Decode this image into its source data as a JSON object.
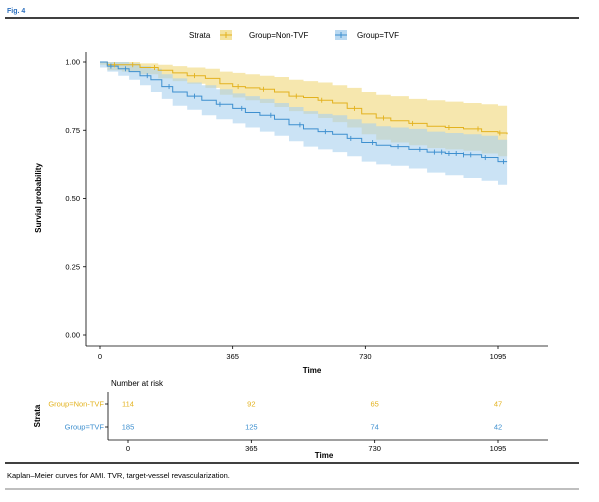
{
  "figure_label": "Fig. 4",
  "caption": "Kaplan–Meier curves for AMI. TVR, target-vessel revascularization.",
  "colors": {
    "non_tvf": "#e3b21e",
    "tvf": "#3d8fcf",
    "non_tvf_band": "#f0d778",
    "tvf_band": "#a9d0ee",
    "figure_label": "#2a6ebd"
  },
  "chart_data": [
    {
      "type": "line",
      "subtype": "kaplan-meier",
      "title": "",
      "xlabel": "Time",
      "ylabel": "Survial probability",
      "xlim": [
        -40,
        1200
      ],
      "ylim": [
        0,
        1.05
      ],
      "x_ticks": [
        0,
        365,
        730,
        1095
      ],
      "y_ticks": [
        "0.00",
        "0.25",
        "0.50",
        "0.75",
        "1.00"
      ],
      "legend": {
        "title": "Strata",
        "position": "top",
        "entries": [
          "Group=Non-TVF",
          "Group=TVF"
        ]
      },
      "grid": false,
      "series": [
        {
          "name": "Group=Non-TVF",
          "color": "#e3b21e",
          "x": [
            0,
            20,
            60,
            110,
            160,
            200,
            240,
            290,
            330,
            365,
            400,
            440,
            480,
            520,
            560,
            600,
            640,
            680,
            720,
            760,
            800,
            850,
            900,
            950,
            1000,
            1050,
            1095,
            1120
          ],
          "y": [
            1.0,
            0.99,
            0.99,
            0.98,
            0.97,
            0.96,
            0.95,
            0.94,
            0.92,
            0.91,
            0.905,
            0.9,
            0.89,
            0.875,
            0.87,
            0.86,
            0.85,
            0.83,
            0.81,
            0.795,
            0.785,
            0.775,
            0.765,
            0.76,
            0.755,
            0.745,
            0.74,
            0.735
          ],
          "ci_upper": [
            1.0,
            1.0,
            1.0,
            0.995,
            0.99,
            0.985,
            0.98,
            0.975,
            0.965,
            0.96,
            0.955,
            0.95,
            0.945,
            0.935,
            0.93,
            0.925,
            0.915,
            0.905,
            0.89,
            0.88,
            0.875,
            0.865,
            0.86,
            0.855,
            0.85,
            0.845,
            0.84,
            0.84
          ],
          "ci_lower": [
            0.99,
            0.97,
            0.965,
            0.955,
            0.94,
            0.93,
            0.92,
            0.905,
            0.88,
            0.87,
            0.86,
            0.85,
            0.835,
            0.82,
            0.81,
            0.795,
            0.78,
            0.76,
            0.735,
            0.715,
            0.705,
            0.695,
            0.685,
            0.68,
            0.675,
            0.665,
            0.655,
            0.65
          ],
          "censor_x": [
            40,
            90,
            150,
            260,
            380,
            450,
            540,
            610,
            700,
            780,
            860,
            960,
            1040,
            1100
          ]
        },
        {
          "name": "Group=TVF",
          "color": "#3d8fcf",
          "x": [
            0,
            20,
            50,
            80,
            110,
            140,
            170,
            200,
            240,
            280,
            320,
            365,
            400,
            440,
            480,
            520,
            560,
            600,
            640,
            680,
            720,
            760,
            800,
            850,
            900,
            950,
            1000,
            1050,
            1095,
            1120
          ],
          "y": [
            1.0,
            0.985,
            0.975,
            0.965,
            0.95,
            0.935,
            0.91,
            0.89,
            0.875,
            0.86,
            0.845,
            0.83,
            0.815,
            0.805,
            0.79,
            0.77,
            0.755,
            0.745,
            0.735,
            0.72,
            0.705,
            0.695,
            0.69,
            0.68,
            0.67,
            0.665,
            0.66,
            0.65,
            0.635,
            0.635
          ],
          "ci_upper": [
            1.0,
            1.0,
            1.0,
            0.995,
            0.985,
            0.975,
            0.955,
            0.94,
            0.925,
            0.915,
            0.9,
            0.885,
            0.875,
            0.865,
            0.85,
            0.835,
            0.82,
            0.81,
            0.805,
            0.79,
            0.775,
            0.765,
            0.76,
            0.755,
            0.745,
            0.74,
            0.735,
            0.73,
            0.715,
            0.715
          ],
          "ci_lower": [
            0.98,
            0.965,
            0.95,
            0.935,
            0.915,
            0.89,
            0.865,
            0.84,
            0.825,
            0.805,
            0.79,
            0.775,
            0.76,
            0.745,
            0.73,
            0.71,
            0.69,
            0.68,
            0.67,
            0.655,
            0.635,
            0.625,
            0.62,
            0.61,
            0.595,
            0.585,
            0.575,
            0.565,
            0.55,
            0.55
          ],
          "censor_x": [
            30,
            70,
            130,
            190,
            260,
            330,
            390,
            470,
            550,
            620,
            690,
            750,
            820,
            880,
            920,
            940,
            960,
            980,
            1000,
            1020,
            1060,
            1110
          ]
        }
      ]
    },
    {
      "type": "table",
      "title": "Number at risk",
      "xlabel": "Time",
      "ylabel": "Strata",
      "x_ticks": [
        0,
        365,
        730,
        1095
      ],
      "rows": [
        {
          "name": "Group=Non-TVF",
          "values": [
            114,
            92,
            65,
            47
          ]
        },
        {
          "name": "Group=TVF",
          "values": [
            185,
            125,
            74,
            42
          ]
        }
      ]
    }
  ]
}
